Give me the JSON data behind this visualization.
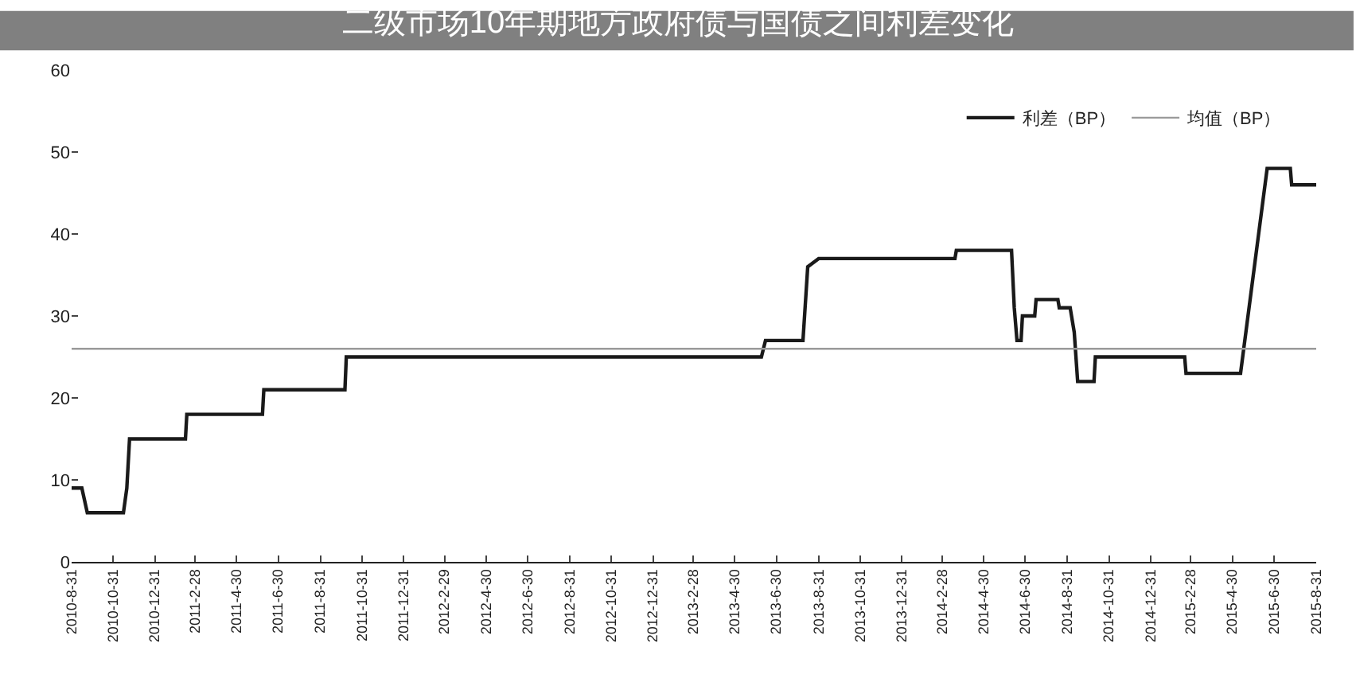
{
  "chart_data": {
    "type": "line",
    "title": "二级市场10年期地方政府债与国债之间利差变化",
    "series": [
      {
        "name": "利差（BP）",
        "color": "#1a1a1a",
        "x": [
          "2010-08-31",
          "2010-09-15",
          "2010-09-23",
          "2010-11-15",
          "2010-11-20",
          "2010-11-24",
          "2011-02-14",
          "2011-02-16",
          "2011-06-07",
          "2011-06-09",
          "2011-10-06",
          "2011-10-08",
          "2013-06-08",
          "2013-06-14",
          "2013-08-08",
          "2013-08-15",
          "2013-08-31",
          "2014-03-19",
          "2014-03-21",
          "2014-06-10",
          "2014-06-14",
          "2014-06-18",
          "2014-06-24",
          "2014-06-26",
          "2014-07-14",
          "2014-07-16",
          "2014-08-17",
          "2014-08-19",
          "2014-09-04",
          "2014-09-10",
          "2014-09-15",
          "2014-10-09",
          "2014-10-11",
          "2015-02-19",
          "2015-02-21",
          "2015-05-12",
          "2015-06-20",
          "2015-07-24",
          "2015-07-26",
          "2015-08-31"
        ],
        "values": [
          9,
          9,
          6,
          6,
          9,
          15,
          15,
          18,
          18,
          21,
          21,
          25,
          25,
          27,
          27,
          36,
          37,
          37,
          38,
          38,
          31,
          27,
          27,
          30,
          30,
          32,
          32,
          31,
          31,
          28,
          22,
          22,
          25,
          25,
          23,
          23,
          48,
          48,
          46,
          46
        ]
      },
      {
        "name": "均值（BP）",
        "color": "#9a9a9a",
        "x": [
          "2010-08-31",
          "2015-08-31"
        ],
        "values": [
          26,
          26
        ]
      }
    ],
    "xlim": [
      "2010-08-31",
      "2015-08-31"
    ],
    "xticks": [
      {
        "value": "2010-08-31",
        "label": "2010-8-31"
      },
      {
        "value": "2010-10-31",
        "label": "2010-10-31"
      },
      {
        "value": "2010-12-31",
        "label": "2010-12-31"
      },
      {
        "value": "2011-02-28",
        "label": "2011-2-28"
      },
      {
        "value": "2011-04-30",
        "label": "2011-4-30"
      },
      {
        "value": "2011-06-30",
        "label": "2011-6-30"
      },
      {
        "value": "2011-08-31",
        "label": "2011-8-31"
      },
      {
        "value": "2011-10-31",
        "label": "2011-10-31"
      },
      {
        "value": "2011-12-31",
        "label": "2011-12-31"
      },
      {
        "value": "2012-02-29",
        "label": "2012-2-29"
      },
      {
        "value": "2012-04-30",
        "label": "2012-4-30"
      },
      {
        "value": "2012-06-30",
        "label": "2012-6-30"
      },
      {
        "value": "2012-08-31",
        "label": "2012-8-31"
      },
      {
        "value": "2012-10-31",
        "label": "2012-10-31"
      },
      {
        "value": "2012-12-31",
        "label": "2012-12-31"
      },
      {
        "value": "2013-02-28",
        "label": "2013-2-28"
      },
      {
        "value": "2013-04-30",
        "label": "2013-4-30"
      },
      {
        "value": "2013-06-30",
        "label": "2013-6-30"
      },
      {
        "value": "2013-08-31",
        "label": "2013-8-31"
      },
      {
        "value": "2013-10-31",
        "label": "2013-10-31"
      },
      {
        "value": "2013-12-31",
        "label": "2013-12-31"
      },
      {
        "value": "2014-02-28",
        "label": "2014-2-28"
      },
      {
        "value": "2014-04-30",
        "label": "2014-4-30"
      },
      {
        "value": "2014-06-30",
        "label": "2014-6-30"
      },
      {
        "value": "2014-08-31",
        "label": "2014-8-31"
      },
      {
        "value": "2014-10-31",
        "label": "2014-10-31"
      },
      {
        "value": "2014-12-31",
        "label": "2014-12-31"
      },
      {
        "value": "2015-02-28",
        "label": "2015-2-28"
      },
      {
        "value": "2015-04-30",
        "label": "2015-4-30"
      },
      {
        "value": "2015-06-30",
        "label": "2015-6-30"
      },
      {
        "value": "2015-08-31",
        "label": "2015-8-31"
      }
    ],
    "ylim": [
      0,
      60
    ],
    "yticks": [
      0,
      10,
      20,
      30,
      40,
      50,
      60
    ],
    "legend": "top right",
    "marker": "none",
    "line_style": "solid"
  }
}
